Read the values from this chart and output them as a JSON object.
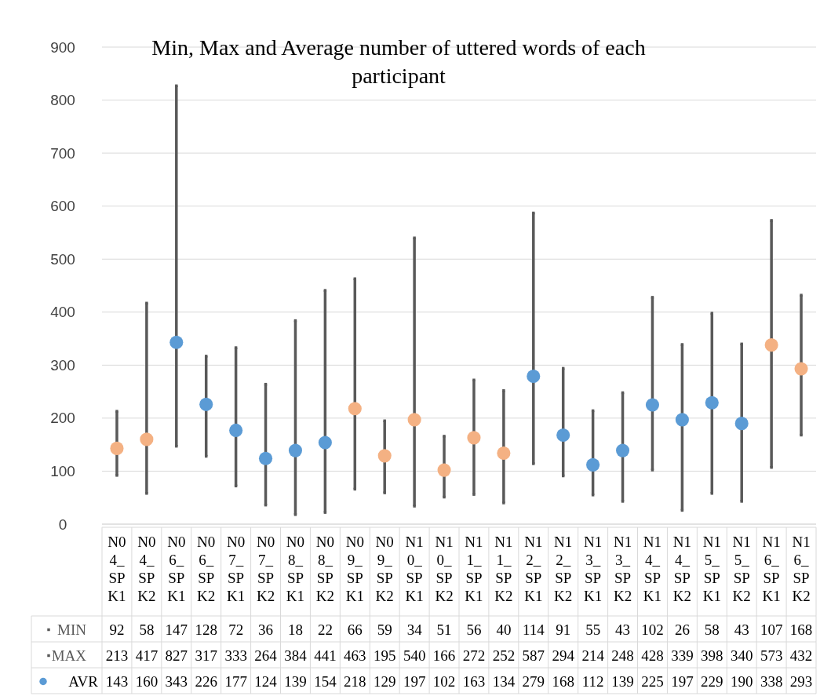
{
  "chart_data": {
    "type": "scatter",
    "title": "Min, Max and Average number of uttered words of each participant",
    "categories": [
      "N04_SPK1",
      "N04_SPK2",
      "N06_SPK1",
      "N06_SPK2",
      "N07_SPK1",
      "N07_SPK2",
      "N08_SPK1",
      "N08_SPK2",
      "N09_SPK1",
      "N09_SPK2",
      "N10_SPK1",
      "N10_SPK2",
      "N11_SPK1",
      "N11_SPK2",
      "N12_SPK1",
      "N12_SPK2",
      "N13_SPK1",
      "N13_SPK2",
      "N14_SPK1",
      "N14_SPK2",
      "N15_SPK1",
      "N15_SPK2",
      "N16_SPK1",
      "N16_SPK2"
    ],
    "series": [
      {
        "name": "MIN",
        "color": "#595959",
        "marker": "square",
        "values": [
          92,
          58,
          147,
          128,
          72,
          36,
          18,
          22,
          66,
          59,
          34,
          51,
          56,
          40,
          114,
          91,
          55,
          43,
          102,
          26,
          58,
          43,
          107,
          168
        ]
      },
      {
        "name": "MAX",
        "color": "#595959",
        "marker": "square",
        "values": [
          213,
          417,
          827,
          317,
          333,
          264,
          384,
          441,
          463,
          195,
          540,
          166,
          272,
          252,
          587,
          294,
          214,
          248,
          428,
          339,
          398,
          340,
          573,
          432
        ]
      },
      {
        "name": "AVR",
        "color": "#5b9bd5",
        "marker": "circle",
        "values": [
          143,
          160,
          343,
          226,
          177,
          124,
          139,
          154,
          218,
          129,
          197,
          102,
          163,
          134,
          279,
          168,
          112,
          139,
          225,
          197,
          229,
          190,
          338,
          293
        ],
        "colors": [
          "#f4b183",
          "#f4b183",
          "#5b9bd5",
          "#5b9bd5",
          "#5b9bd5",
          "#5b9bd5",
          "#5b9bd5",
          "#5b9bd5",
          "#f4b183",
          "#f4b183",
          "#f4b183",
          "#f4b183",
          "#f4b183",
          "#f4b183",
          "#5b9bd5",
          "#5b9bd5",
          "#5b9bd5",
          "#5b9bd5",
          "#5b9bd5",
          "#5b9bd5",
          "#5b9bd5",
          "#5b9bd5",
          "#f4b183",
          "#f4b183"
        ]
      }
    ],
    "ylim": [
      0,
      900
    ],
    "yticks": [
      0,
      100,
      200,
      300,
      400,
      500,
      600,
      700,
      800,
      900
    ],
    "grid": "y",
    "data_labels": true,
    "legend": "bottom"
  }
}
